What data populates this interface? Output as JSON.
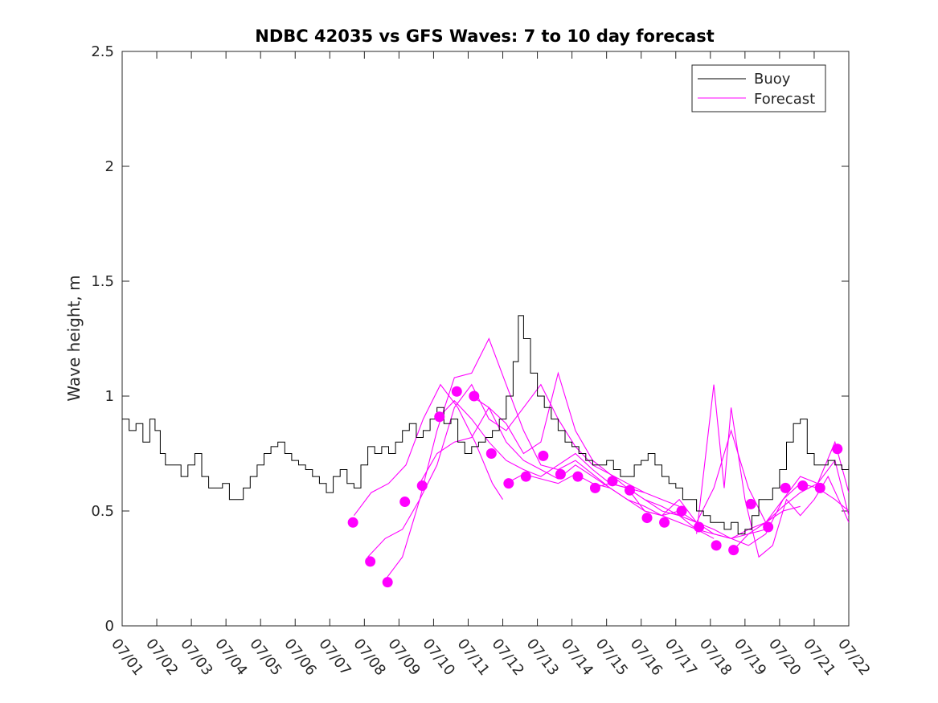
{
  "chart_data": {
    "type": "line",
    "title": "NDBC 42035 vs GFS Waves: 7 to 10 day forecast",
    "xlabel": "",
    "ylabel": "Wave height, m",
    "x_ticks": [
      "07/01",
      "07/02",
      "07/03",
      "07/04",
      "07/05",
      "07/06",
      "07/07",
      "07/08",
      "07/09",
      "07/10",
      "07/11",
      "07/12",
      "07/13",
      "07/14",
      "07/15",
      "07/16",
      "07/17",
      "07/18",
      "07/19",
      "07/20",
      "07/21",
      "07/22"
    ],
    "x_range_days": [
      1,
      22
    ],
    "ylim": [
      0,
      2.5
    ],
    "y_ticks": [
      0,
      0.5,
      1,
      1.5,
      2,
      2.5
    ],
    "y_tick_labels": [
      "0",
      "0.5",
      "1",
      "1.5",
      "2",
      "2.5"
    ],
    "grid": false,
    "legend": {
      "placement": "top-right",
      "entries": [
        "Buoy",
        "Forecast"
      ]
    },
    "colors": {
      "buoy": "#000000",
      "forecast": "#ff00ff",
      "marker": "#ff00ff"
    },
    "buoy_series": {
      "name": "Buoy",
      "points": [
        [
          1.0,
          0.9
        ],
        [
          1.2,
          0.85
        ],
        [
          1.4,
          0.88
        ],
        [
          1.6,
          0.8
        ],
        [
          1.8,
          0.9
        ],
        [
          1.95,
          0.85
        ],
        [
          2.1,
          0.75
        ],
        [
          2.25,
          0.7
        ],
        [
          2.5,
          0.7
        ],
        [
          2.7,
          0.65
        ],
        [
          2.9,
          0.7
        ],
        [
          3.1,
          0.75
        ],
        [
          3.3,
          0.65
        ],
        [
          3.5,
          0.6
        ],
        [
          3.7,
          0.6
        ],
        [
          3.9,
          0.62
        ],
        [
          4.1,
          0.55
        ],
        [
          4.3,
          0.55
        ],
        [
          4.5,
          0.6
        ],
        [
          4.7,
          0.65
        ],
        [
          4.9,
          0.7
        ],
        [
          5.1,
          0.75
        ],
        [
          5.3,
          0.78
        ],
        [
          5.5,
          0.8
        ],
        [
          5.7,
          0.75
        ],
        [
          5.9,
          0.72
        ],
        [
          6.1,
          0.7
        ],
        [
          6.3,
          0.68
        ],
        [
          6.5,
          0.65
        ],
        [
          6.7,
          0.62
        ],
        [
          6.9,
          0.58
        ],
        [
          7.1,
          0.65
        ],
        [
          7.3,
          0.68
        ],
        [
          7.5,
          0.62
        ],
        [
          7.7,
          0.6
        ],
        [
          7.9,
          0.7
        ],
        [
          8.1,
          0.78
        ],
        [
          8.3,
          0.75
        ],
        [
          8.5,
          0.78
        ],
        [
          8.7,
          0.75
        ],
        [
          8.9,
          0.8
        ],
        [
          9.1,
          0.85
        ],
        [
          9.3,
          0.88
        ],
        [
          9.5,
          0.82
        ],
        [
          9.7,
          0.85
        ],
        [
          9.9,
          0.9
        ],
        [
          10.1,
          0.95
        ],
        [
          10.3,
          0.88
        ],
        [
          10.5,
          0.9
        ],
        [
          10.7,
          0.8
        ],
        [
          10.9,
          0.75
        ],
        [
          11.1,
          0.78
        ],
        [
          11.3,
          0.8
        ],
        [
          11.5,
          0.82
        ],
        [
          11.7,
          0.85
        ],
        [
          11.9,
          0.9
        ],
        [
          12.1,
          1.0
        ],
        [
          12.3,
          1.15
        ],
        [
          12.45,
          1.35
        ],
        [
          12.6,
          1.25
        ],
        [
          12.8,
          1.1
        ],
        [
          13.0,
          1.0
        ],
        [
          13.2,
          0.95
        ],
        [
          13.4,
          0.9
        ],
        [
          13.6,
          0.85
        ],
        [
          13.8,
          0.8
        ],
        [
          14.0,
          0.78
        ],
        [
          14.2,
          0.75
        ],
        [
          14.4,
          0.72
        ],
        [
          14.6,
          0.7
        ],
        [
          14.8,
          0.7
        ],
        [
          15.0,
          0.72
        ],
        [
          15.2,
          0.68
        ],
        [
          15.4,
          0.65
        ],
        [
          15.6,
          0.65
        ],
        [
          15.8,
          0.7
        ],
        [
          16.0,
          0.72
        ],
        [
          16.2,
          0.75
        ],
        [
          16.4,
          0.7
        ],
        [
          16.6,
          0.65
        ],
        [
          16.8,
          0.62
        ],
        [
          17.0,
          0.6
        ],
        [
          17.2,
          0.55
        ],
        [
          17.4,
          0.55
        ],
        [
          17.6,
          0.5
        ],
        [
          17.8,
          0.48
        ],
        [
          18.0,
          0.45
        ],
        [
          18.2,
          0.45
        ],
        [
          18.4,
          0.42
        ],
        [
          18.6,
          0.45
        ],
        [
          18.8,
          0.4
        ],
        [
          19.0,
          0.42
        ],
        [
          19.2,
          0.48
        ],
        [
          19.4,
          0.55
        ],
        [
          19.6,
          0.55
        ],
        [
          19.8,
          0.6
        ],
        [
          20.0,
          0.68
        ],
        [
          20.2,
          0.8
        ],
        [
          20.4,
          0.88
        ],
        [
          20.6,
          0.9
        ],
        [
          20.8,
          0.75
        ],
        [
          21.0,
          0.7
        ],
        [
          21.2,
          0.7
        ],
        [
          21.4,
          0.72
        ],
        [
          21.6,
          0.7
        ],
        [
          21.8,
          0.68
        ],
        [
          22.0,
          0.7
        ]
      ]
    },
    "forecast_series": [
      {
        "name": "Forecast",
        "points": [
          [
            7.7,
            0.48
          ],
          [
            8.2,
            0.58
          ],
          [
            8.7,
            0.62
          ],
          [
            9.2,
            0.7
          ],
          [
            9.7,
            0.9
          ],
          [
            10.2,
            1.05
          ],
          [
            10.7,
            0.95
          ],
          [
            11.2,
            0.8
          ],
          [
            11.7,
            0.62
          ],
          [
            12.0,
            0.55
          ]
        ]
      },
      {
        "name": "Forecast",
        "points": [
          [
            8.1,
            0.3
          ],
          [
            8.6,
            0.38
          ],
          [
            9.1,
            0.42
          ],
          [
            9.6,
            0.55
          ],
          [
            10.1,
            0.85
          ],
          [
            10.6,
            1.08
          ],
          [
            11.1,
            1.1
          ],
          [
            11.6,
            1.25
          ],
          [
            12.1,
            1.05
          ],
          [
            12.6,
            0.85
          ],
          [
            13.1,
            0.7
          ],
          [
            13.6,
            0.68
          ],
          [
            14.1,
            0.72
          ],
          [
            14.6,
            0.66
          ],
          [
            15.1,
            0.6
          ]
        ]
      },
      {
        "name": "Forecast",
        "points": [
          [
            8.6,
            0.2
          ],
          [
            9.1,
            0.3
          ],
          [
            9.6,
            0.55
          ],
          [
            10.1,
            0.7
          ],
          [
            10.6,
            0.95
          ],
          [
            11.1,
            1.05
          ],
          [
            11.6,
            0.9
          ],
          [
            12.1,
            0.85
          ],
          [
            12.6,
            0.95
          ],
          [
            13.1,
            1.05
          ],
          [
            13.6,
            0.9
          ],
          [
            14.1,
            0.78
          ],
          [
            14.6,
            0.7
          ],
          [
            15.1,
            0.66
          ],
          [
            15.6,
            0.6
          ],
          [
            16.1,
            0.58
          ]
        ]
      },
      {
        "name": "Forecast",
        "points": [
          [
            9.6,
            0.62
          ],
          [
            10.1,
            0.75
          ],
          [
            10.6,
            0.8
          ],
          [
            11.1,
            0.82
          ],
          [
            11.6,
            0.95
          ],
          [
            12.1,
            0.88
          ],
          [
            12.6,
            0.75
          ],
          [
            13.1,
            0.8
          ],
          [
            13.6,
            1.1
          ],
          [
            14.1,
            0.85
          ],
          [
            14.6,
            0.72
          ],
          [
            15.1,
            0.66
          ],
          [
            15.6,
            0.62
          ],
          [
            16.1,
            0.58
          ],
          [
            16.6,
            0.55
          ],
          [
            17.1,
            0.52
          ]
        ]
      },
      {
        "name": "Forecast",
        "points": [
          [
            10.1,
            0.9
          ],
          [
            10.6,
            0.98
          ],
          [
            11.1,
            0.9
          ],
          [
            11.6,
            0.8
          ],
          [
            12.1,
            0.72
          ],
          [
            12.6,
            0.68
          ],
          [
            13.1,
            0.65
          ],
          [
            13.6,
            0.7
          ],
          [
            14.1,
            0.75
          ],
          [
            14.6,
            0.68
          ],
          [
            15.1,
            0.62
          ],
          [
            15.6,
            0.6
          ],
          [
            16.1,
            0.55
          ],
          [
            16.6,
            0.52
          ],
          [
            17.1,
            0.48
          ],
          [
            17.6,
            0.42
          ],
          [
            18.1,
            0.38
          ]
        ]
      },
      {
        "name": "Forecast",
        "points": [
          [
            11.1,
            1.0
          ],
          [
            11.6,
            0.95
          ],
          [
            12.1,
            0.8
          ],
          [
            12.6,
            0.72
          ],
          [
            13.1,
            0.68
          ],
          [
            13.6,
            0.64
          ],
          [
            14.1,
            0.7
          ],
          [
            14.6,
            0.65
          ],
          [
            15.1,
            0.6
          ],
          [
            15.6,
            0.55
          ],
          [
            16.1,
            0.5
          ],
          [
            16.6,
            0.48
          ],
          [
            17.1,
            0.45
          ],
          [
            17.6,
            0.42
          ],
          [
            18.1,
            0.4
          ],
          [
            18.6,
            0.38
          ],
          [
            19.1,
            0.4
          ],
          [
            19.6,
            0.42
          ]
        ]
      },
      {
        "name": "Forecast",
        "points": [
          [
            12.1,
            0.62
          ],
          [
            12.6,
            0.66
          ],
          [
            13.1,
            0.64
          ],
          [
            13.6,
            0.62
          ],
          [
            14.1,
            0.66
          ],
          [
            14.6,
            0.62
          ],
          [
            15.1,
            0.6
          ],
          [
            15.6,
            0.55
          ],
          [
            16.1,
            0.52
          ],
          [
            16.6,
            0.48
          ],
          [
            17.1,
            0.5
          ],
          [
            17.6,
            0.45
          ],
          [
            18.1,
            0.4
          ],
          [
            18.6,
            0.38
          ],
          [
            19.1,
            0.42
          ],
          [
            19.6,
            0.45
          ],
          [
            20.1,
            0.5
          ],
          [
            20.6,
            0.52
          ]
        ]
      },
      {
        "name": "Forecast",
        "points": [
          [
            14.6,
            0.6
          ],
          [
            15.1,
            0.62
          ],
          [
            15.6,
            0.6
          ],
          [
            16.1,
            0.5
          ],
          [
            16.6,
            0.48
          ],
          [
            17.1,
            0.55
          ],
          [
            17.6,
            0.45
          ],
          [
            18.1,
            0.42
          ],
          [
            18.6,
            0.38
          ],
          [
            19.1,
            0.35
          ],
          [
            19.6,
            0.4
          ],
          [
            20.1,
            0.55
          ],
          [
            20.6,
            0.62
          ],
          [
            21.1,
            0.6
          ],
          [
            21.6,
            0.55
          ],
          [
            22.0,
            0.5
          ]
        ]
      },
      {
        "name": "Forecast",
        "points": [
          [
            16.1,
            0.55
          ],
          [
            16.6,
            0.5
          ],
          [
            17.1,
            0.48
          ],
          [
            17.6,
            0.45
          ],
          [
            18.1,
            0.6
          ],
          [
            18.6,
            0.85
          ],
          [
            19.1,
            0.6
          ],
          [
            19.6,
            0.45
          ],
          [
            20.1,
            0.52
          ],
          [
            20.6,
            0.58
          ],
          [
            21.1,
            0.62
          ],
          [
            21.6,
            0.72
          ],
          [
            22.0,
            0.48
          ]
        ]
      },
      {
        "name": "Forecast",
        "points": [
          [
            17.6,
            0.4
          ],
          [
            18.1,
            1.05
          ],
          [
            18.4,
            0.6
          ],
          [
            18.6,
            0.95
          ],
          [
            19.0,
            0.55
          ],
          [
            19.4,
            0.3
          ],
          [
            19.8,
            0.35
          ],
          [
            20.2,
            0.55
          ],
          [
            20.6,
            0.48
          ],
          [
            21.0,
            0.55
          ],
          [
            21.4,
            0.65
          ],
          [
            21.8,
            0.52
          ],
          [
            22.0,
            0.45
          ]
        ]
      },
      {
        "name": "Forecast",
        "points": [
          [
            18.6,
            0.32
          ],
          [
            19.1,
            0.4
          ],
          [
            19.6,
            0.45
          ],
          [
            20.1,
            0.55
          ],
          [
            20.6,
            0.65
          ],
          [
            21.1,
            0.62
          ],
          [
            21.6,
            0.8
          ],
          [
            22.0,
            0.58
          ]
        ]
      }
    ],
    "forecast_markers": [
      [
        7.67,
        0.45
      ],
      [
        8.17,
        0.28
      ],
      [
        8.67,
        0.19
      ],
      [
        9.17,
        0.54
      ],
      [
        9.67,
        0.61
      ],
      [
        10.17,
        0.91
      ],
      [
        10.67,
        1.02
      ],
      [
        11.17,
        1.0
      ],
      [
        11.67,
        0.75
      ],
      [
        12.17,
        0.62
      ],
      [
        12.67,
        0.65
      ],
      [
        13.17,
        0.74
      ],
      [
        13.67,
        0.66
      ],
      [
        14.17,
        0.65
      ],
      [
        14.67,
        0.6
      ],
      [
        15.17,
        0.63
      ],
      [
        15.67,
        0.59
      ],
      [
        16.17,
        0.47
      ],
      [
        16.67,
        0.45
      ],
      [
        17.17,
        0.5
      ],
      [
        17.67,
        0.43
      ],
      [
        18.17,
        0.35
      ],
      [
        18.67,
        0.33
      ],
      [
        19.17,
        0.53
      ],
      [
        19.67,
        0.43
      ],
      [
        20.17,
        0.6
      ],
      [
        20.67,
        0.61
      ],
      [
        21.17,
        0.6
      ],
      [
        21.67,
        0.77
      ]
    ]
  }
}
